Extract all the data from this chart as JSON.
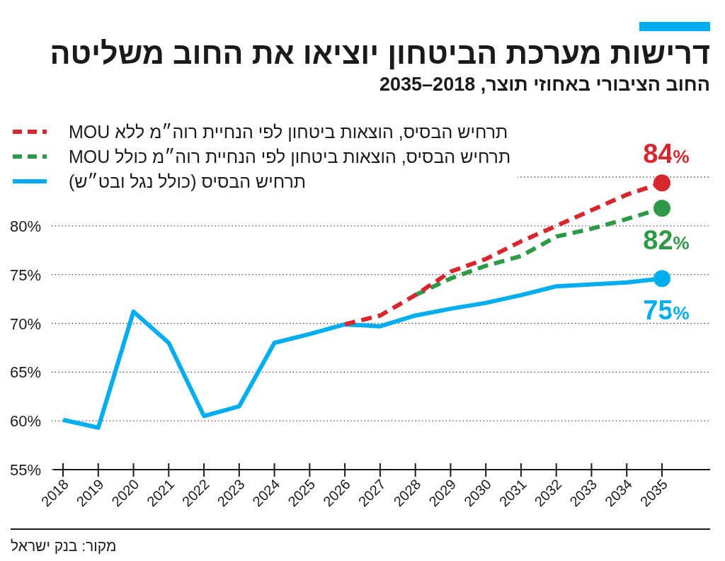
{
  "chart_data": {
    "type": "line",
    "title": "דרישות מערכת הביטחון יוציאו את החוב משליטה",
    "subtitle": "החוב הציבורי באחוזי תוצר, 2018–2035",
    "annotations": [
      "מקור: בנק ישראל"
    ],
    "categories": [
      "2018",
      "2019",
      "2020",
      "2021",
      "2022",
      "2023",
      "2024",
      "2025",
      "2026",
      "2027",
      "2028",
      "2029",
      "2030",
      "2031",
      "2032",
      "2033",
      "2034",
      "2035"
    ],
    "series": [
      {
        "name": "תרחיש הבסיס, הוצאות ביטחון לפי הנחיית רוה״מ ללא MOU",
        "color": "#d7262e",
        "line_style": "dashed",
        "values": [
          null,
          null,
          null,
          null,
          null,
          null,
          null,
          null,
          69.9,
          70.8,
          72.9,
          75.3,
          76.6,
          78.4,
          80.0,
          81.6,
          83.2,
          84.4
        ],
        "value_labels": [
          null,
          null,
          null,
          null,
          null,
          null,
          null,
          null,
          null,
          null,
          null,
          null,
          null,
          null,
          null,
          null,
          null,
          "84%"
        ]
      },
      {
        "name": "תרחיש הבסיס, הוצאות ביטחון לפי הנחיית רוה״מ כולל MOU",
        "color": "#2e9a47",
        "line_style": "dashed",
        "values": [
          null,
          null,
          null,
          null,
          null,
          null,
          null,
          null,
          null,
          null,
          72.9,
          74.6,
          75.9,
          76.9,
          78.9,
          79.7,
          80.7,
          81.8
        ],
        "value_labels": [
          null,
          null,
          null,
          null,
          null,
          null,
          null,
          null,
          null,
          null,
          null,
          null,
          null,
          null,
          null,
          null,
          null,
          "82%"
        ]
      },
      {
        "name": "תרחיש הבסיס (כולל נגל ובט״ש)",
        "color": "#00aeef",
        "line_style": "solid",
        "values": [
          60.1,
          59.3,
          71.2,
          68.0,
          60.5,
          61.5,
          68.0,
          68.9,
          69.9,
          69.7,
          70.8,
          71.5,
          72.1,
          72.9,
          73.8,
          74.0,
          74.2,
          74.6
        ],
        "value_labels": [
          null,
          null,
          null,
          null,
          null,
          null,
          null,
          null,
          null,
          null,
          null,
          null,
          null,
          null,
          null,
          null,
          null,
          "75%"
        ]
      }
    ],
    "ylim": [
      55,
      85
    ],
    "yticks": [
      {
        "value": 55,
        "label": "55%"
      },
      {
        "value": 60,
        "label": "60%"
      },
      {
        "value": 65,
        "label": "65%"
      },
      {
        "value": 70,
        "label": "70%"
      },
      {
        "value": 75,
        "label": "75%"
      },
      {
        "value": 80,
        "label": "80%"
      },
      {
        "value": 85,
        "label": null
      }
    ],
    "grid": "y",
    "legend": "top left"
  }
}
